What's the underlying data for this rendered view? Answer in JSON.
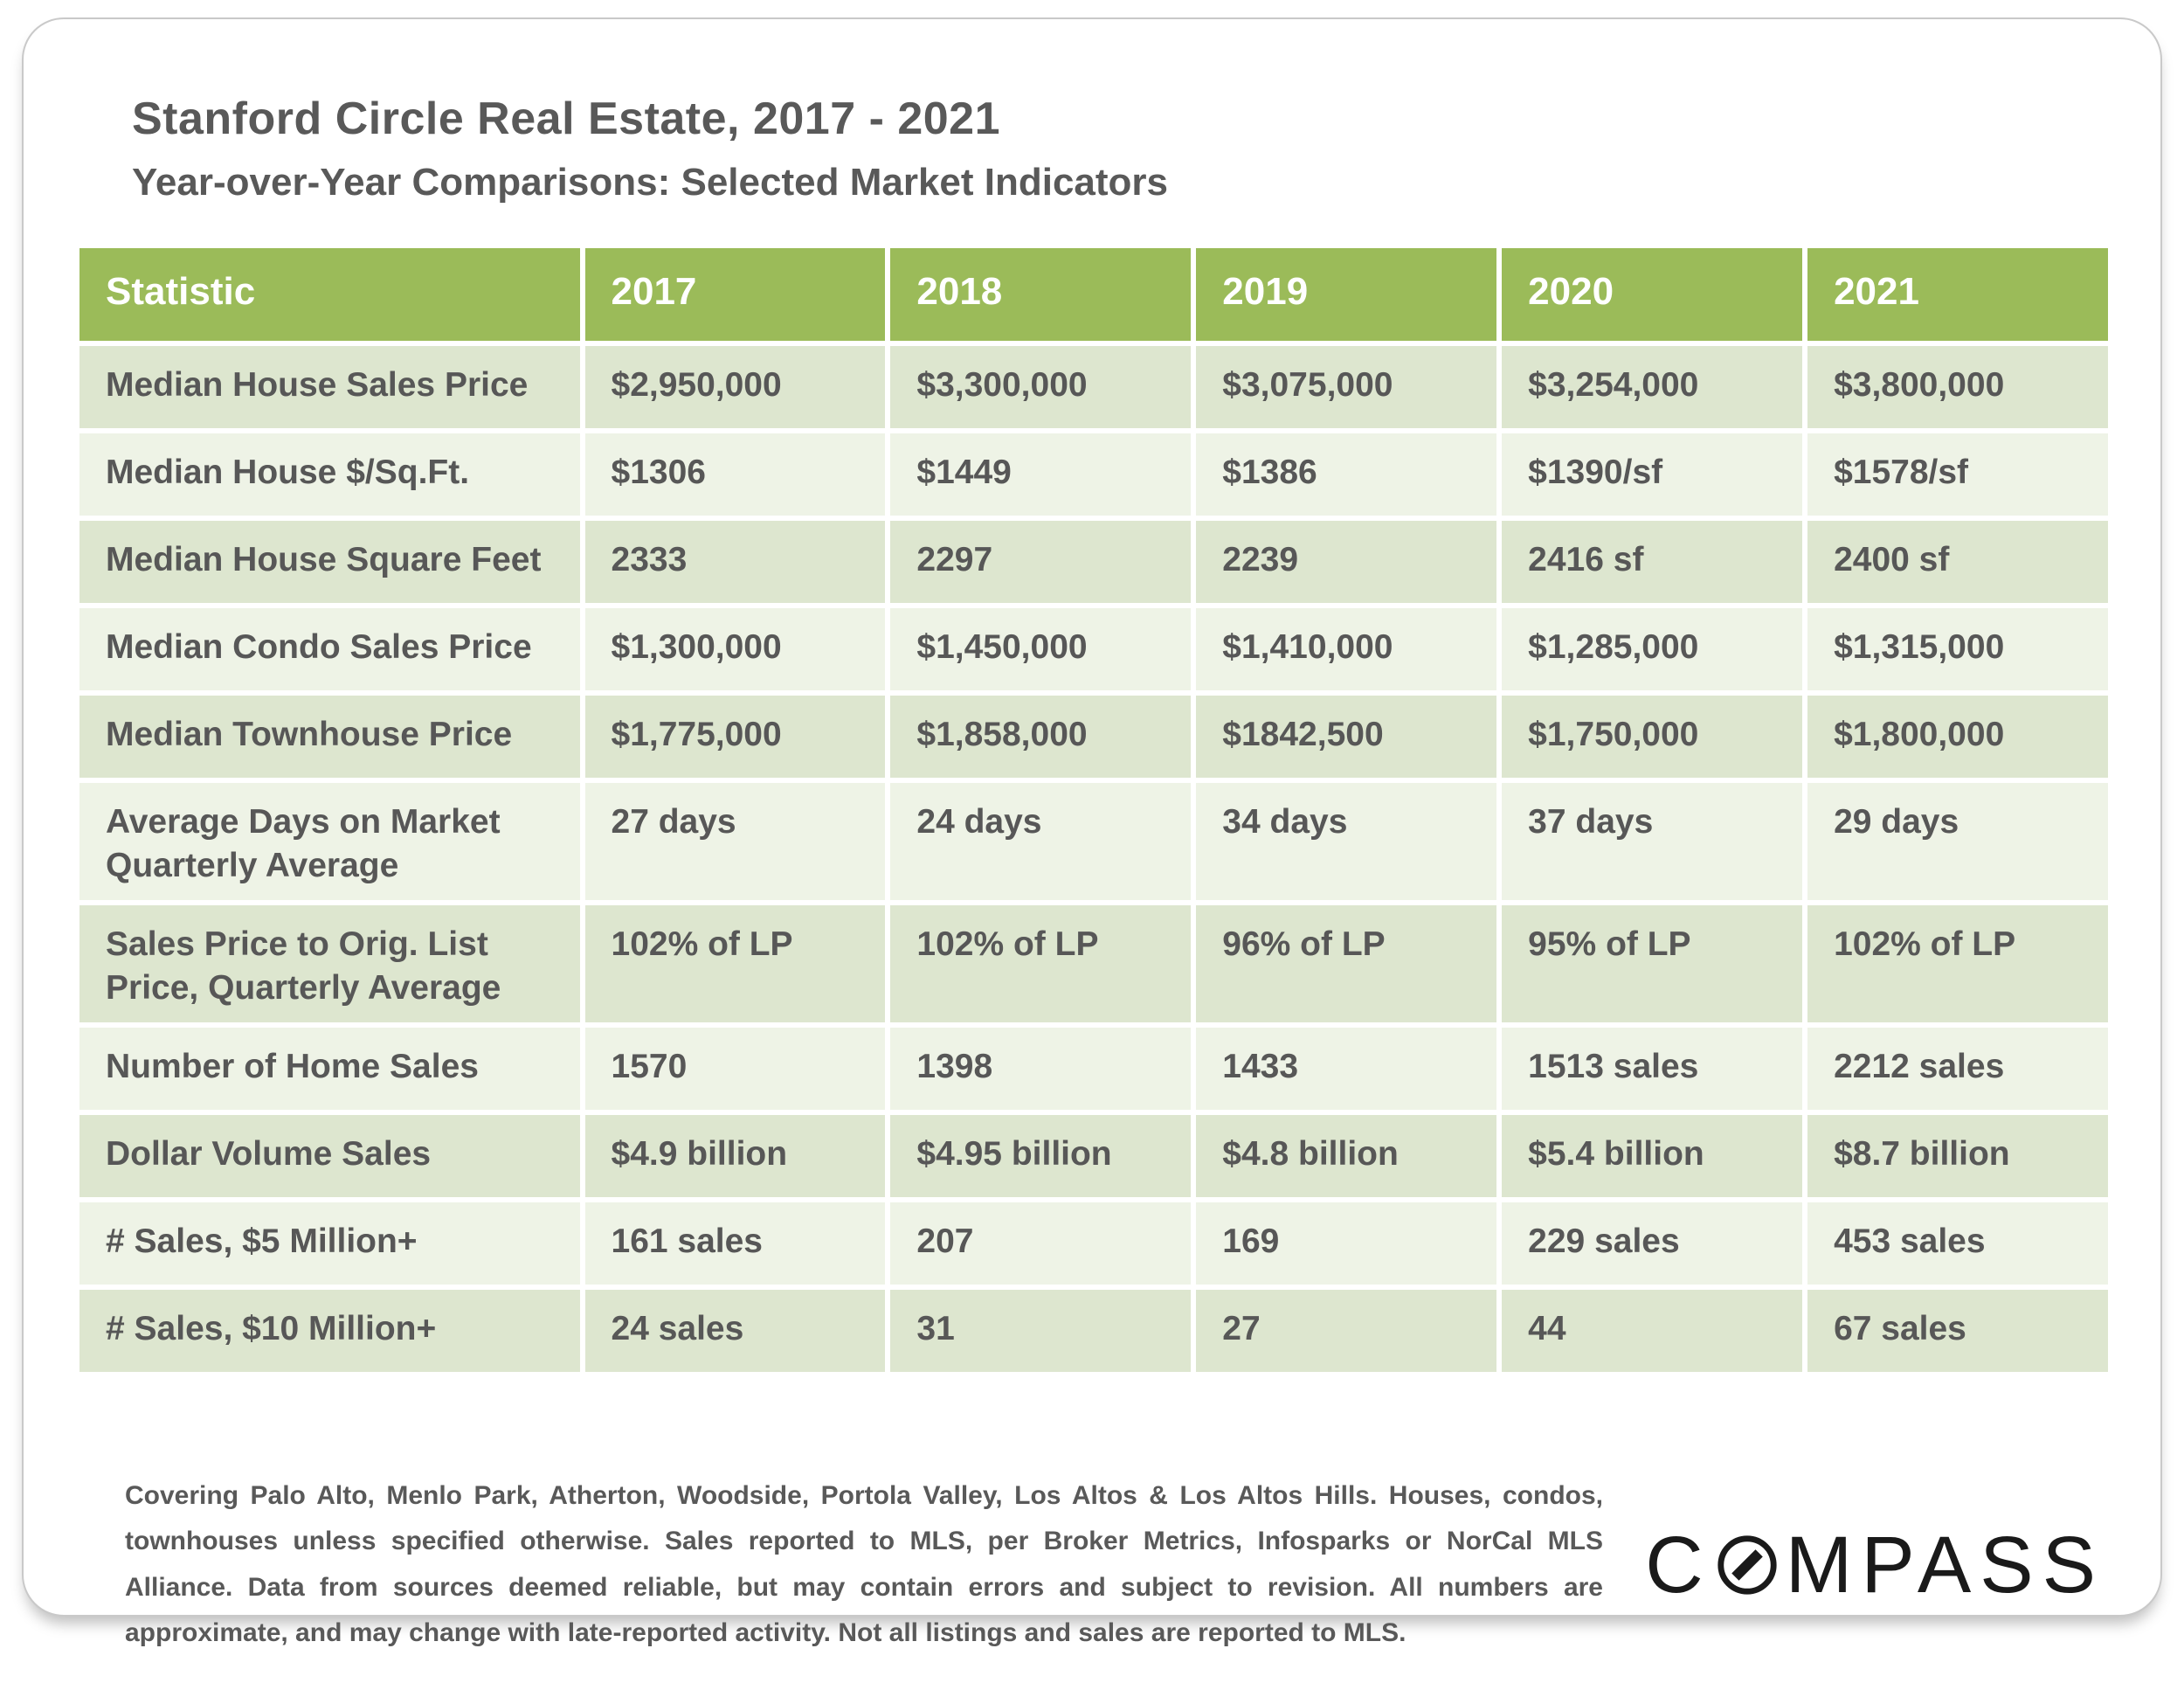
{
  "page": {
    "title": "Stanford Circle Real Estate, 2017 - 2021",
    "subtitle": "Year-over-Year Comparisons: Selected Market Indicators"
  },
  "chart_data": {
    "type": "table",
    "title": "Stanford Circle Real Estate, 2017 - 2021",
    "subtitle": "Year-over-Year Comparisons: Selected Market Indicators",
    "columns": [
      "Statistic",
      "2017",
      "2018",
      "2019",
      "2020",
      "2021"
    ],
    "rows": [
      {
        "label": "Median House Sales Price",
        "values": [
          "$2,950,000",
          "$3,300,000",
          "$3,075,000",
          "$3,254,000",
          "$3,800,000"
        ]
      },
      {
        "label": "Median House $/Sq.Ft.",
        "values": [
          "$1306",
          "$1449",
          "$1386",
          "$1390/sf",
          "$1578/sf"
        ]
      },
      {
        "label": "Median House Square Feet",
        "values": [
          "2333",
          "2297",
          "2239",
          "2416 sf",
          "2400 sf"
        ]
      },
      {
        "label": "Median Condo Sales Price",
        "values": [
          "$1,300,000",
          "$1,450,000",
          "$1,410,000",
          "$1,285,000",
          "$1,315,000"
        ]
      },
      {
        "label": "Median Townhouse Price",
        "values": [
          "$1,775,000",
          "$1,858,000",
          "$1842,500",
          "$1,750,000",
          "$1,800,000"
        ]
      },
      {
        "label": "Average Days on Market Quarterly Average",
        "values": [
          "27 days",
          "24 days",
          "34 days",
          "37 days",
          "29 days"
        ]
      },
      {
        "label": "Sales Price to Orig. List Price, Quarterly Average",
        "values": [
          "102% of LP",
          "102% of LP",
          "96% of LP",
          "95% of LP",
          "102% of LP"
        ]
      },
      {
        "label": "Number of Home Sales",
        "values": [
          "1570",
          "1398",
          "1433",
          "1513 sales",
          "2212 sales"
        ]
      },
      {
        "label": "Dollar Volume Sales",
        "values": [
          "$4.9 billion",
          "$4.95 billion",
          "$4.8 billion",
          "$5.4 billion",
          "$8.7 billion"
        ]
      },
      {
        "label": "# Sales, $5 Million+",
        "values": [
          "161 sales",
          "207",
          "169",
          "229 sales",
          "453 sales"
        ]
      },
      {
        "label": "# Sales, $10 Million+",
        "values": [
          "24 sales",
          "31",
          "27",
          "44",
          "67 sales"
        ]
      }
    ]
  },
  "footer": {
    "disclaimer": "Covering Palo Alto, Menlo Park, Atherton, Woodside, Portola Valley, Los Altos & Los Altos Hills. Houses, condos, townhouses unless specified otherwise. Sales reported to MLS, per Broker Metrics, Infosparks or NorCal MLS Alliance. Data from sources deemed reliable, but may contain errors and subject to revision. All numbers are approximate, and may change with late-reported activity. Not all listings and sales are reported to MLS.",
    "logo": {
      "name": "COMPASS",
      "text_before_icon": "C",
      "text_after_icon": "MPASS"
    }
  },
  "colors": {
    "header_bg": "#9bbb59",
    "row_dark": "#dde6cf",
    "row_light": "#eef3e6",
    "cell_text": "#575757",
    "title_text": "#595959",
    "logo_color": "#1a1a1a"
  }
}
